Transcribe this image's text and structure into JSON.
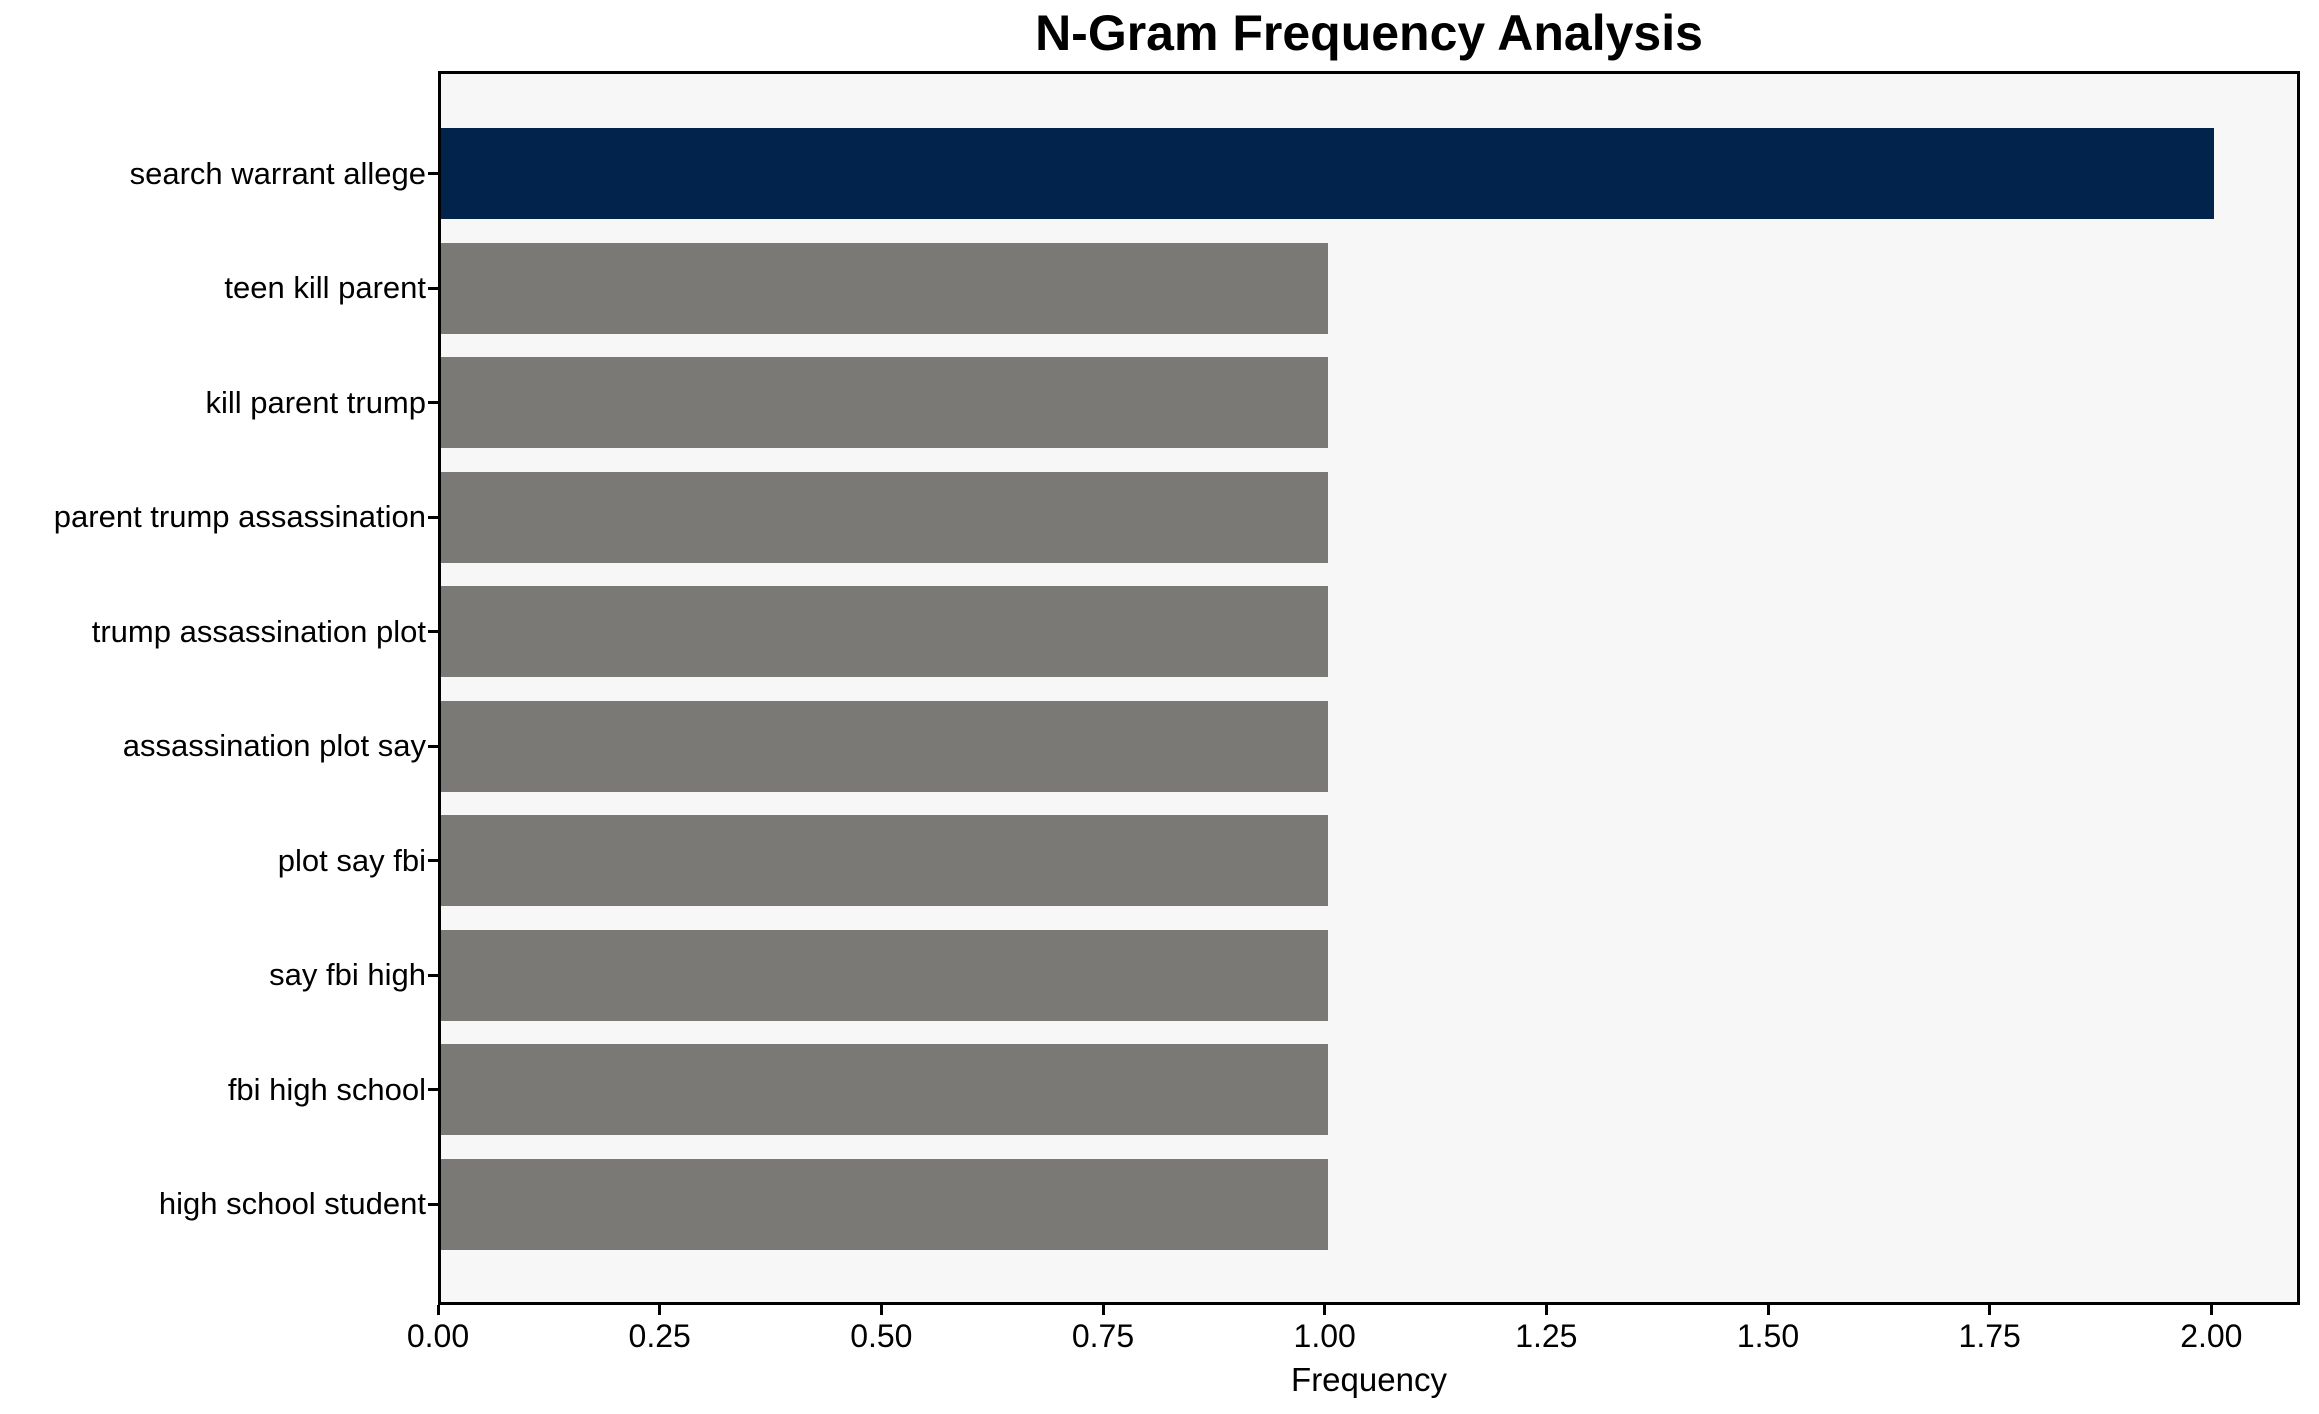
{
  "chart_data": {
    "type": "bar",
    "orientation": "horizontal",
    "title": "N-Gram Frequency Analysis",
    "xlabel": "Frequency",
    "ylabel": "",
    "categories": [
      "search warrant allege",
      "teen kill parent",
      "kill parent trump",
      "parent trump assassination",
      "trump assassination plot",
      "assassination plot say",
      "plot say fbi",
      "say fbi high",
      "fbi high school",
      "high school student"
    ],
    "values": [
      2,
      1,
      1,
      1,
      1,
      1,
      1,
      1,
      1,
      1
    ],
    "highlight_index": 0,
    "xlim": [
      0,
      2.1
    ],
    "xtick_values": [
      0,
      0.25,
      0.5,
      0.75,
      1.0,
      1.25,
      1.5,
      1.75,
      2.0
    ],
    "xtick_labels": [
      "0.00",
      "0.25",
      "0.50",
      "0.75",
      "1.00",
      "1.25",
      "1.50",
      "1.75",
      "2.00"
    ],
    "grid": false,
    "legend": false,
    "colors": {
      "highlight_bar": "#02244c",
      "default_bar": "#7a7975",
      "plot_background": "#f7f7f7",
      "figure_background": "#ffffff",
      "axis": "#000000"
    }
  }
}
